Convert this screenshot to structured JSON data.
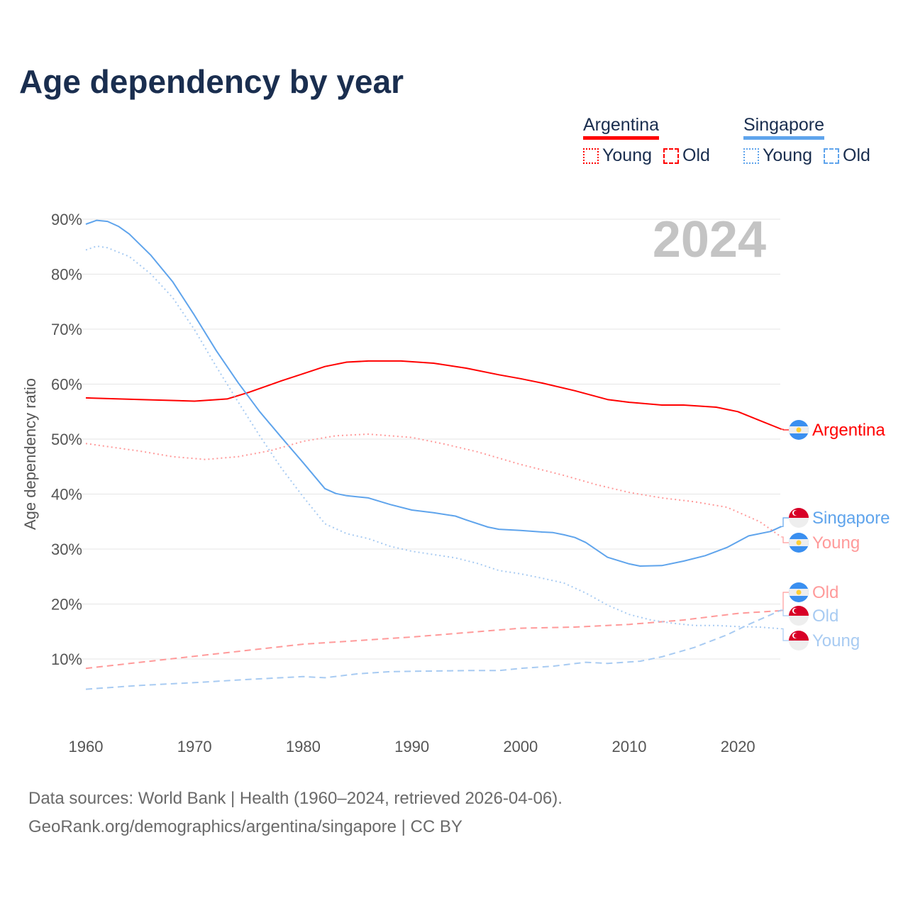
{
  "title": "Age dependency by year",
  "legend": {
    "countries": [
      {
        "name": "Argentina",
        "color": "#ff0000",
        "light": "#ff9a9a",
        "items": [
          "Young",
          "Old"
        ]
      },
      {
        "name": "Singapore",
        "color": "#5fa4ec",
        "light": "#a8cbf2",
        "items": [
          "Young",
          "Old"
        ]
      }
    ]
  },
  "year_label": "2024",
  "footer": {
    "line1": "Data sources: World Bank | Health (1960–2024, retrieved 2026-04-06).",
    "line2": "GeoRank.org/demographics/argentina/singapore | CC BY"
  },
  "chart_data": {
    "type": "line",
    "title": "Age dependency by year",
    "xlabel": "",
    "ylabel": "Age dependency ratio",
    "xlim": [
      1960,
      2024
    ],
    "ylim": [
      0,
      90
    ],
    "x_ticks": [
      "1960",
      "1970",
      "1980",
      "1990",
      "2000",
      "2010",
      "2020"
    ],
    "y_ticks": [
      "10%",
      "20%",
      "30%",
      "40%",
      "50%",
      "60%",
      "70%",
      "80%",
      "90%"
    ],
    "grid": true,
    "series": [
      {
        "name": "Argentina",
        "label": "Argentina",
        "country": "Argentina",
        "style": "solid",
        "color": "#ff0000",
        "points": [
          [
            1960,
            57.5
          ],
          [
            1965,
            57.2
          ],
          [
            1970,
            56.9
          ],
          [
            1973,
            57.3
          ],
          [
            1975,
            58.5
          ],
          [
            1978,
            60.6
          ],
          [
            1980,
            61.9
          ],
          [
            1982,
            63.2
          ],
          [
            1984,
            64.0
          ],
          [
            1986,
            64.2
          ],
          [
            1989,
            64.2
          ],
          [
            1992,
            63.8
          ],
          [
            1995,
            62.9
          ],
          [
            1998,
            61.7
          ],
          [
            2000,
            61.0
          ],
          [
            2002,
            60.2
          ],
          [
            2005,
            58.8
          ],
          [
            2008,
            57.2
          ],
          [
            2010,
            56.7
          ],
          [
            2013,
            56.2
          ],
          [
            2015,
            56.2
          ],
          [
            2018,
            55.8
          ],
          [
            2020,
            55.0
          ],
          [
            2022,
            53.4
          ],
          [
            2024,
            51.8
          ]
        ]
      },
      {
        "name": "Singapore",
        "label": "Singapore",
        "country": "Singapore",
        "style": "solid",
        "color": "#5fa4ec",
        "points": [
          [
            1960,
            89.1
          ],
          [
            1961,
            89.8
          ],
          [
            1962,
            89.6
          ],
          [
            1963,
            88.7
          ],
          [
            1964,
            87.3
          ],
          [
            1966,
            83.4
          ],
          [
            1968,
            78.6
          ],
          [
            1970,
            72.5
          ],
          [
            1972,
            66.1
          ],
          [
            1974,
            60.3
          ],
          [
            1976,
            55.0
          ],
          [
            1978,
            50.3
          ],
          [
            1980,
            45.7
          ],
          [
            1982,
            41.0
          ],
          [
            1983,
            40.1
          ],
          [
            1984,
            39.7
          ],
          [
            1986,
            39.3
          ],
          [
            1988,
            38.1
          ],
          [
            1990,
            37.1
          ],
          [
            1992,
            36.6
          ],
          [
            1994,
            36.0
          ],
          [
            1995,
            35.3
          ],
          [
            1997,
            34.0
          ],
          [
            1998,
            33.6
          ],
          [
            2000,
            33.4
          ],
          [
            2002,
            33.1
          ],
          [
            2003,
            33.0
          ],
          [
            2004,
            32.6
          ],
          [
            2005,
            32.1
          ],
          [
            2006,
            31.2
          ],
          [
            2008,
            28.5
          ],
          [
            2010,
            27.3
          ],
          [
            2011,
            26.9
          ],
          [
            2013,
            27.0
          ],
          [
            2015,
            27.8
          ],
          [
            2017,
            28.8
          ],
          [
            2019,
            30.3
          ],
          [
            2021,
            32.4
          ],
          [
            2023,
            33.2
          ],
          [
            2024,
            34.1
          ]
        ]
      },
      {
        "name": "Argentina Young",
        "label": "Young",
        "country": "Argentina",
        "style": "dotted",
        "color": "#ff9a9a",
        "points": [
          [
            1960,
            49.2
          ],
          [
            1965,
            47.8
          ],
          [
            1968,
            46.8
          ],
          [
            1971,
            46.3
          ],
          [
            1974,
            46.8
          ],
          [
            1977,
            47.9
          ],
          [
            1980,
            49.6
          ],
          [
            1983,
            50.6
          ],
          [
            1986,
            50.9
          ],
          [
            1990,
            50.3
          ],
          [
            1993,
            49.1
          ],
          [
            1996,
            47.7
          ],
          [
            2000,
            45.4
          ],
          [
            2004,
            43.4
          ],
          [
            2007,
            41.7
          ],
          [
            2010,
            40.3
          ],
          [
            2013,
            39.3
          ],
          [
            2016,
            38.6
          ],
          [
            2019,
            37.6
          ],
          [
            2022,
            35.0
          ],
          [
            2024,
            32.2
          ]
        ]
      },
      {
        "name": "Argentina Old",
        "label": "Old",
        "country": "Argentina",
        "style": "dashed",
        "color": "#ff9a9a",
        "points": [
          [
            1960,
            8.3
          ],
          [
            1970,
            10.5
          ],
          [
            1980,
            12.7
          ],
          [
            1990,
            14.0
          ],
          [
            2000,
            15.6
          ],
          [
            2005,
            15.8
          ],
          [
            2010,
            16.3
          ],
          [
            2015,
            17.1
          ],
          [
            2020,
            18.3
          ],
          [
            2024,
            18.8
          ]
        ]
      },
      {
        "name": "Singapore Old",
        "label": "Old",
        "country": "Singapore",
        "style": "dashed",
        "color": "#a8cbf2",
        "points": [
          [
            1960,
            4.5
          ],
          [
            1965,
            5.2
          ],
          [
            1970,
            5.7
          ],
          [
            1975,
            6.3
          ],
          [
            1980,
            6.8
          ],
          [
            1982,
            6.6
          ],
          [
            1985,
            7.3
          ],
          [
            1988,
            7.7
          ],
          [
            1995,
            7.9
          ],
          [
            1998,
            7.9
          ],
          [
            2000,
            8.3
          ],
          [
            2003,
            8.7
          ],
          [
            2006,
            9.4
          ],
          [
            2008,
            9.2
          ],
          [
            2011,
            9.6
          ],
          [
            2013,
            10.4
          ],
          [
            2016,
            12.1
          ],
          [
            2019,
            14.4
          ],
          [
            2021,
            16.3
          ],
          [
            2024,
            18.9
          ]
        ]
      },
      {
        "name": "Singapore Young",
        "label": "Young",
        "country": "Singapore",
        "style": "dotted",
        "color": "#a8cbf2",
        "points": [
          [
            1960,
            84.4
          ],
          [
            1961,
            85.1
          ],
          [
            1962,
            84.8
          ],
          [
            1964,
            83.2
          ],
          [
            1966,
            80.0
          ],
          [
            1968,
            75.7
          ],
          [
            1970,
            69.9
          ],
          [
            1972,
            63.2
          ],
          [
            1974,
            56.8
          ],
          [
            1976,
            50.6
          ],
          [
            1978,
            44.7
          ],
          [
            1980,
            39.5
          ],
          [
            1982,
            34.6
          ],
          [
            1984,
            32.8
          ],
          [
            1986,
            31.9
          ],
          [
            1988,
            30.5
          ],
          [
            1990,
            29.6
          ],
          [
            1992,
            29.0
          ],
          [
            1994,
            28.4
          ],
          [
            1996,
            27.4
          ],
          [
            1998,
            26.1
          ],
          [
            2000,
            25.5
          ],
          [
            2002,
            24.7
          ],
          [
            2004,
            23.8
          ],
          [
            2006,
            22.0
          ],
          [
            2008,
            19.8
          ],
          [
            2010,
            18.1
          ],
          [
            2012,
            17.1
          ],
          [
            2014,
            16.5
          ],
          [
            2016,
            16.1
          ],
          [
            2018,
            16.1
          ],
          [
            2020,
            15.9
          ],
          [
            2022,
            15.8
          ],
          [
            2024,
            15.5
          ]
        ]
      }
    ]
  }
}
